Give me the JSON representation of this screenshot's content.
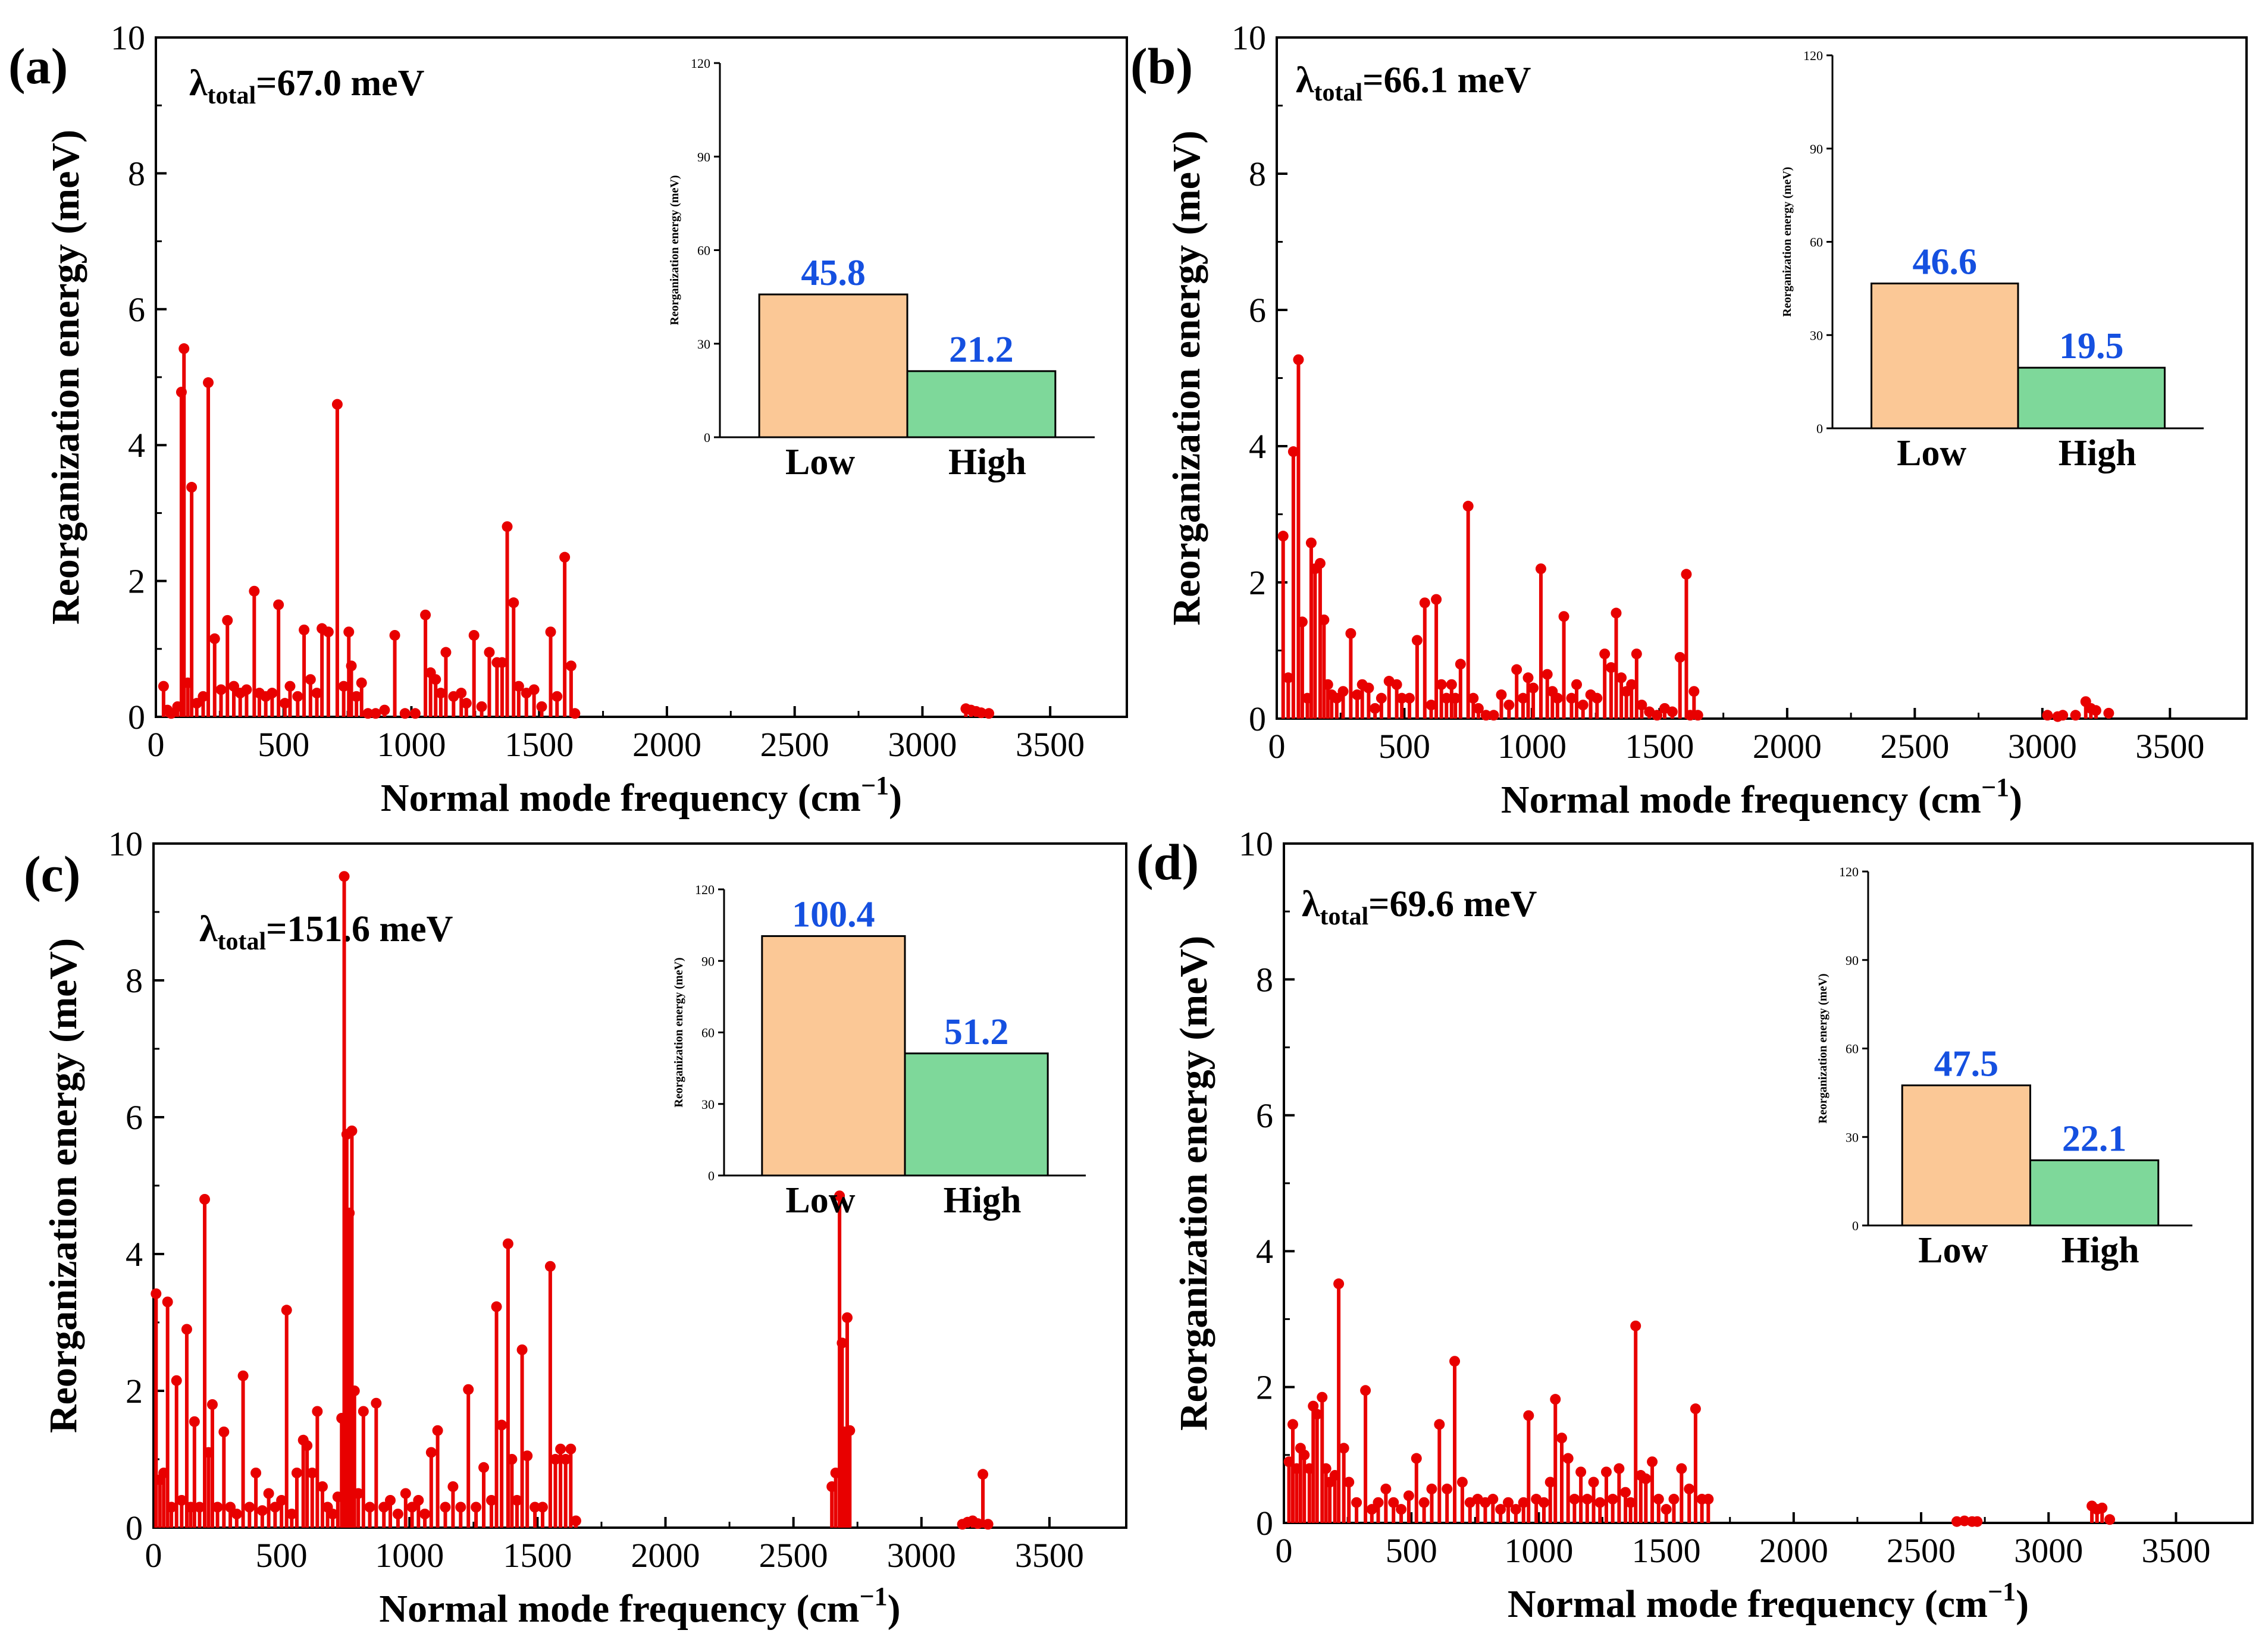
{
  "colors": {
    "stem": "#e80000",
    "low_bar": "#fbc896",
    "high_bar": "#7ed89a",
    "value_text": "#1550e0"
  },
  "chart_data": [
    {
      "type": "stem",
      "panel_label": "(a)",
      "lambda_prefix": "λ",
      "lambda_sub": "total",
      "lambda_value": "=67.0 meV",
      "xlabel": "Normal mode frequency (cm",
      "xlabel_sup": "−1",
      "xlabel_end": ")",
      "ylabel": "Reorganization energy (meV)",
      "xlim": [
        0,
        3800
      ],
      "ylim": [
        0,
        10
      ],
      "xticks": [
        "0",
        "500",
        "1000",
        "1500",
        "2000",
        "2500",
        "3000",
        "3500"
      ],
      "yticks": [
        "0",
        "2",
        "4",
        "6",
        "8",
        "10"
      ],
      "x": [
        30,
        45,
        60,
        85,
        100,
        110,
        125,
        140,
        160,
        185,
        205,
        230,
        255,
        280,
        305,
        330,
        355,
        385,
        405,
        430,
        455,
        480,
        505,
        525,
        555,
        580,
        605,
        630,
        650,
        675,
        710,
        735,
        755,
        765,
        785,
        805,
        830,
        860,
        895,
        935,
        975,
        1015,
        1055,
        1075,
        1095,
        1115,
        1135,
        1165,
        1195,
        1215,
        1245,
        1275,
        1305,
        1335,
        1355,
        1375,
        1400,
        1420,
        1450,
        1480,
        1510,
        1545,
        1570,
        1600,
        1625,
        1640,
        3170,
        3190,
        3210,
        3230,
        3260
      ],
      "values": [
        0.45,
        0.1,
        0.05,
        0.15,
        4.78,
        5.42,
        0.5,
        3.38,
        0.2,
        0.3,
        4.92,
        1.15,
        0.4,
        1.42,
        0.45,
        0.35,
        0.4,
        1.85,
        0.35,
        0.3,
        0.35,
        1.65,
        0.2,
        0.45,
        0.3,
        1.28,
        0.55,
        0.35,
        1.3,
        1.25,
        4.6,
        0.45,
        1.25,
        0.75,
        0.3,
        0.5,
        0.05,
        0.05,
        0.1,
        1.2,
        0.05,
        0.05,
        1.5,
        0.65,
        0.55,
        0.35,
        0.95,
        0.3,
        0.35,
        0.2,
        1.2,
        0.15,
        0.95,
        0.8,
        0.8,
        2.8,
        1.68,
        0.45,
        0.35,
        0.4,
        0.15,
        1.25,
        0.3,
        2.35,
        0.75,
        0.05,
        0.12,
        0.1,
        0.08,
        0.06,
        0.05
      ],
      "inset": {
        "ylabel": "Reorganization energy (meV)",
        "yticks": [
          "0",
          "30",
          "60",
          "90",
          "120"
        ],
        "ylim": [
          0,
          120
        ],
        "categories": [
          "Low",
          "High"
        ],
        "values": [
          45.8,
          21.2
        ],
        "value_labels": [
          "45.8",
          "21.2"
        ]
      }
    },
    {
      "type": "stem",
      "panel_label": "(b)",
      "lambda_prefix": "λ",
      "lambda_sub": "total",
      "lambda_value": "=66.1 meV",
      "xlabel": "Normal mode frequency (cm",
      "xlabel_sup": "−1",
      "xlabel_end": ")",
      "ylabel": "Reorganization energy (meV)",
      "xlim": [
        0,
        3800
      ],
      "ylim": [
        0,
        10
      ],
      "xticks": [
        "0",
        "500",
        "1000",
        "1500",
        "2000",
        "2500",
        "3000",
        "3500"
      ],
      "yticks": [
        "0",
        "2",
        "4",
        "6",
        "8",
        "10"
      ],
      "x": [
        25,
        45,
        65,
        85,
        100,
        120,
        135,
        150,
        170,
        185,
        200,
        215,
        235,
        260,
        290,
        315,
        335,
        360,
        385,
        410,
        440,
        470,
        490,
        520,
        550,
        580,
        605,
        625,
        645,
        665,
        685,
        700,
        720,
        750,
        770,
        790,
        820,
        850,
        880,
        910,
        940,
        965,
        985,
        1005,
        1035,
        1060,
        1080,
        1100,
        1125,
        1155,
        1175,
        1200,
        1230,
        1255,
        1285,
        1310,
        1330,
        1350,
        1370,
        1390,
        1410,
        1430,
        1460,
        1490,
        1520,
        1550,
        1580,
        1605,
        1620,
        1635,
        1650,
        3020,
        3060,
        3080,
        3130,
        3170,
        3190,
        3210,
        3260
      ],
      "values": [
        2.68,
        0.6,
        3.92,
        5.27,
        1.42,
        0.3,
        2.58,
        2.2,
        2.28,
        1.45,
        0.5,
        0.35,
        0.3,
        0.4,
        1.25,
        0.35,
        0.5,
        0.45,
        0.15,
        0.3,
        0.55,
        0.5,
        0.3,
        0.3,
        1.15,
        1.7,
        0.2,
        1.75,
        0.5,
        0.3,
        0.5,
        0.3,
        0.8,
        3.12,
        0.3,
        0.15,
        0.05,
        0.05,
        0.35,
        0.2,
        0.72,
        0.3,
        0.6,
        0.45,
        2.2,
        0.65,
        0.4,
        0.3,
        1.5,
        0.3,
        0.5,
        0.2,
        0.35,
        0.3,
        0.95,
        0.75,
        1.55,
        0.6,
        0.4,
        0.5,
        0.95,
        0.2,
        0.1,
        0.05,
        0.15,
        0.1,
        0.9,
        2.12,
        0.05,
        0.4,
        0.05,
        0.05,
        0.03,
        0.05,
        0.05,
        0.25,
        0.15,
        0.12,
        0.08
      ],
      "inset": {
        "ylabel": "Reorganization energy (meV)",
        "yticks": [
          "0",
          "30",
          "60",
          "90",
          "120"
        ],
        "ylim": [
          0,
          120
        ],
        "categories": [
          "Low",
          "High"
        ],
        "values": [
          46.6,
          19.5
        ],
        "value_labels": [
          "46.6",
          "19.5"
        ]
      }
    },
    {
      "type": "stem",
      "panel_label": "(c)",
      "lambda_prefix": "λ",
      "lambda_sub": "total",
      "lambda_value": "=151.6 meV",
      "xlabel": "Normal mode frequency (cm",
      "xlabel_sup": "−1",
      "xlabel_end": ")",
      "ylabel": "Reorganization energy (meV)",
      "xlim": [
        0,
        3800
      ],
      "ylim": [
        0,
        10
      ],
      "xticks": [
        "0",
        "500",
        "1000",
        "1500",
        "2000",
        "2500",
        "3000",
        "3500"
      ],
      "yticks": [
        "0",
        "2",
        "4",
        "6",
        "8",
        "10"
      ],
      "x": [
        10,
        25,
        40,
        55,
        70,
        90,
        110,
        130,
        145,
        160,
        180,
        200,
        215,
        230,
        250,
        275,
        300,
        325,
        350,
        375,
        400,
        425,
        450,
        475,
        500,
        520,
        540,
        560,
        585,
        600,
        620,
        640,
        660,
        680,
        700,
        720,
        735,
        745,
        755,
        765,
        775,
        785,
        800,
        820,
        845,
        870,
        900,
        925,
        955,
        985,
        1010,
        1035,
        1060,
        1085,
        1110,
        1140,
        1170,
        1200,
        1230,
        1260,
        1290,
        1320,
        1340,
        1360,
        1385,
        1400,
        1420,
        1440,
        1460,
        1490,
        1520,
        1550,
        1570,
        1590,
        1610,
        1630,
        1650,
        2650,
        2665,
        2680,
        2690,
        2700,
        2710,
        2720,
        3160,
        3180,
        3200,
        3220,
        3240,
        3260
      ],
      "values": [
        3.42,
        0.7,
        0.8,
        3.3,
        0.3,
        2.15,
        0.4,
        2.9,
        0.3,
        1.55,
        0.3,
        4.8,
        1.1,
        1.8,
        0.3,
        1.4,
        0.3,
        0.2,
        2.22,
        0.3,
        0.8,
        0.25,
        0.5,
        0.3,
        0.4,
        3.18,
        0.2,
        0.8,
        1.28,
        1.2,
        0.8,
        1.7,
        0.6,
        0.3,
        0.2,
        0.45,
        1.6,
        9.52,
        5.75,
        4.6,
        5.8,
        2.0,
        0.5,
        1.7,
        0.3,
        1.82,
        0.3,
        0.4,
        0.2,
        0.5,
        0.3,
        0.4,
        0.2,
        1.1,
        1.42,
        0.3,
        0.6,
        0.3,
        2.02,
        0.3,
        0.88,
        0.4,
        3.23,
        1.5,
        4.15,
        1.0,
        0.4,
        2.6,
        1.05,
        0.3,
        0.3,
        3.82,
        1.0,
        1.15,
        1.0,
        1.15,
        0.1,
        0.6,
        0.8,
        4.85,
        2.7,
        1.4,
        3.07,
        1.42,
        0.05,
        0.08,
        0.1,
        0.06,
        0.78,
        0.05
      ],
      "inset": {
        "ylabel": "Reorganization energy (meV)",
        "yticks": [
          "0",
          "30",
          "60",
          "90",
          "120"
        ],
        "ylim": [
          0,
          120
        ],
        "categories": [
          "Low",
          "High"
        ],
        "values": [
          100.4,
          51.2
        ],
        "value_labels": [
          "100.4",
          "51.2"
        ]
      }
    },
    {
      "type": "stem",
      "panel_label": "(d)",
      "lambda_prefix": "λ",
      "lambda_sub": "total",
      "lambda_value": "=69.6 meV",
      "xlabel": "Normal mode frequency (cm",
      "xlabel_sup": "−1",
      "xlabel_end": ")",
      "ylabel": "Reorganization energy (meV)",
      "xlim": [
        0,
        3800
      ],
      "ylim": [
        0,
        10
      ],
      "xticks": [
        "0",
        "500",
        "1000",
        "1500",
        "2000",
        "2500",
        "3000",
        "3500"
      ],
      "yticks": [
        "0",
        "2",
        "4",
        "6",
        "8",
        "10"
      ],
      "x": [
        20,
        35,
        50,
        65,
        80,
        100,
        115,
        130,
        150,
        165,
        180,
        200,
        215,
        235,
        255,
        285,
        320,
        345,
        370,
        400,
        430,
        460,
        490,
        520,
        550,
        580,
        610,
        640,
        670,
        700,
        730,
        760,
        790,
        820,
        850,
        880,
        910,
        940,
        960,
        990,
        1020,
        1045,
        1065,
        1090,
        1115,
        1140,
        1165,
        1190,
        1215,
        1240,
        1265,
        1290,
        1315,
        1340,
        1360,
        1380,
        1400,
        1420,
        1445,
        1470,
        1500,
        1530,
        1560,
        1590,
        1615,
        1640,
        1665,
        2640,
        2670,
        2700,
        2720,
        3170,
        3190,
        3210,
        3240
      ],
      "values": [
        0.9,
        1.45,
        0.8,
        1.1,
        1.0,
        0.8,
        1.72,
        1.6,
        1.85,
        0.8,
        0.6,
        0.7,
        3.52,
        1.1,
        0.6,
        0.3,
        1.95,
        0.2,
        0.3,
        0.5,
        0.3,
        0.2,
        0.4,
        0.95,
        0.3,
        0.5,
        1.45,
        0.5,
        2.38,
        0.6,
        0.3,
        0.35,
        0.3,
        0.35,
        0.2,
        0.3,
        0.2,
        0.3,
        1.58,
        0.35,
        0.3,
        0.6,
        1.82,
        1.25,
        0.95,
        0.35,
        0.75,
        0.35,
        0.6,
        0.3,
        0.75,
        0.35,
        0.8,
        0.45,
        0.3,
        2.9,
        0.7,
        0.65,
        0.9,
        0.35,
        0.2,
        0.35,
        0.8,
        0.5,
        1.68,
        0.35,
        0.35,
        0.02,
        0.03,
        0.02,
        0.02,
        0.25,
        0.2,
        0.22,
        0.05
      ],
      "inset": {
        "ylabel": "Reorganization energy (meV)",
        "yticks": [
          "0",
          "30",
          "60",
          "90",
          "120"
        ],
        "ylim": [
          0,
          120
        ],
        "categories": [
          "Low",
          "High"
        ],
        "values": [
          47.5,
          22.1
        ],
        "value_labels": [
          "47.5",
          "22.1"
        ]
      }
    }
  ]
}
